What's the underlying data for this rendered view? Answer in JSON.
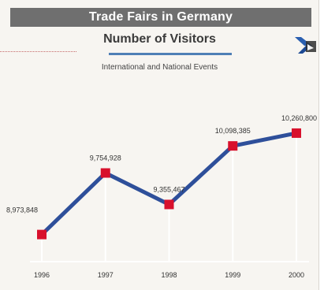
{
  "banner_title": "Trade Fairs in Germany",
  "icons": {
    "logo": "airplane-logo-icon"
  },
  "chart_data": {
    "type": "line",
    "title": "Number of Visitors",
    "subtitle": "International and National Events",
    "categories": [
      "1996",
      "1997",
      "1998",
      "1999",
      "2000"
    ],
    "series": [
      {
        "values": [
          8973848,
          9754928,
          9355467,
          10098385,
          10260800
        ],
        "labels": [
          "8,973,848",
          "9,754,928",
          "9,355,467",
          "10,098,385",
          "10,260,800"
        ]
      }
    ],
    "ylim": [
      8300000,
      11000000
    ],
    "grid": false,
    "colors": {
      "line": "#2e4f9a",
      "marker": "#d8102c",
      "guide": "#ffffff"
    }
  }
}
